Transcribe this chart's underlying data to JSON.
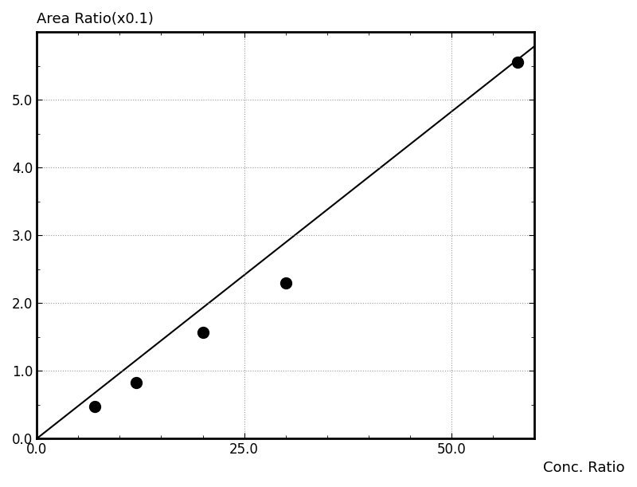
{
  "title": "Area Ratio(x0.1)",
  "xlabel": "Conc. Ratio",
  "ylabel": "",
  "xlim": [
    0.0,
    60.0
  ],
  "ylim": [
    0.0,
    6.0
  ],
  "xticks": [
    0.0,
    25.0,
    50.0
  ],
  "yticks": [
    0.0,
    1.0,
    2.0,
    3.0,
    4.0,
    5.0
  ],
  "scatter_x": [
    7,
    12,
    20,
    30,
    58
  ],
  "scatter_y": [
    0.47,
    0.83,
    1.57,
    2.3,
    5.55
  ],
  "line_x_start": 0,
  "line_x_end": 60,
  "line_slope": 0.0965,
  "line_intercept": 0.0,
  "scatter_color": "#000000",
  "line_color": "#000000",
  "background_color": "#ffffff",
  "grid_color": "#999999",
  "marker_size": 10,
  "line_width": 1.5,
  "title_fontsize": 13,
  "label_fontsize": 13,
  "tick_fontsize": 12
}
